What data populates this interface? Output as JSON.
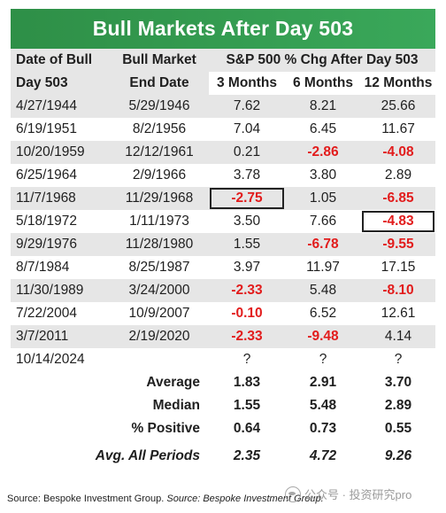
{
  "title": "Bull Markets After Day 503",
  "headers": {
    "row1": [
      "Date of Bull",
      "Bull Market",
      "S&P 500 % Chg After Day 503"
    ],
    "row2": [
      "Day 503",
      "End Date",
      "3 Months",
      "6 Months",
      "12 Months"
    ]
  },
  "rows": [
    {
      "date": "4/27/1944",
      "end": "5/29/1946",
      "m3": "7.62",
      "m6": "8.21",
      "m12": "25.66"
    },
    {
      "date": "6/19/1951",
      "end": "8/2/1956",
      "m3": "7.04",
      "m6": "6.45",
      "m12": "11.67"
    },
    {
      "date": "10/20/1959",
      "end": "12/12/1961",
      "m3": "0.21",
      "m6": "-2.86",
      "m12": "-4.08"
    },
    {
      "date": "6/25/1964",
      "end": "2/9/1966",
      "m3": "3.78",
      "m6": "3.80",
      "m12": "2.89"
    },
    {
      "date": "11/7/1968",
      "end": "11/29/1968",
      "m3": "-2.75",
      "m6": "1.05",
      "m12": "-6.85"
    },
    {
      "date": "5/18/1972",
      "end": "1/11/1973",
      "m3": "3.50",
      "m6": "7.66",
      "m12": "-4.83"
    },
    {
      "date": "9/29/1976",
      "end": "11/28/1980",
      "m3": "1.55",
      "m6": "-6.78",
      "m12": "-9.55"
    },
    {
      "date": "8/7/1984",
      "end": "8/25/1987",
      "m3": "3.97",
      "m6": "11.97",
      "m12": "17.15"
    },
    {
      "date": "11/30/1989",
      "end": "3/24/2000",
      "m3": "-2.33",
      "m6": "5.48",
      "m12": "-8.10"
    },
    {
      "date": "7/22/2004",
      "end": "10/9/2007",
      "m3": "-0.10",
      "m6": "6.52",
      "m12": "12.61"
    },
    {
      "date": "3/7/2011",
      "end": "2/19/2020",
      "m3": "-2.33",
      "m6": "-9.48",
      "m12": "4.14"
    },
    {
      "date": "10/14/2024",
      "end": "",
      "m3": "?",
      "m6": "?",
      "m12": "?"
    }
  ],
  "summary": [
    {
      "label": "Average",
      "m3": "1.83",
      "m6": "2.91",
      "m12": "3.70"
    },
    {
      "label": "Median",
      "m3": "1.55",
      "m6": "5.48",
      "m12": "2.89"
    },
    {
      "label": "% Positive",
      "m3": "0.64",
      "m6": "0.73",
      "m12": "0.55"
    }
  ],
  "avg_all": {
    "label": "Avg. All Periods",
    "m3": "2.35",
    "m6": "4.72",
    "m12": "9.26"
  },
  "footer": {
    "plain": "Source: Bespoke Investment Group. ",
    "italic": "Source: Bespoke Investment Group."
  },
  "watermark": "公众号 · 投资研究pro",
  "colors": {
    "title_bg": "#3aa85a",
    "negative": "#e21c1c",
    "band": "#e6e6e6"
  },
  "chart_data": {
    "type": "table",
    "title": "Bull Markets After Day 503",
    "columns": [
      "Date of Bull Day 503",
      "Bull Market End Date",
      "3 Months",
      "6 Months",
      "12 Months"
    ],
    "highlighted_cells": [
      {
        "row": "11/7/1968",
        "column": "3 Months"
      },
      {
        "row": "5/18/1972",
        "column": "12 Months"
      }
    ]
  }
}
